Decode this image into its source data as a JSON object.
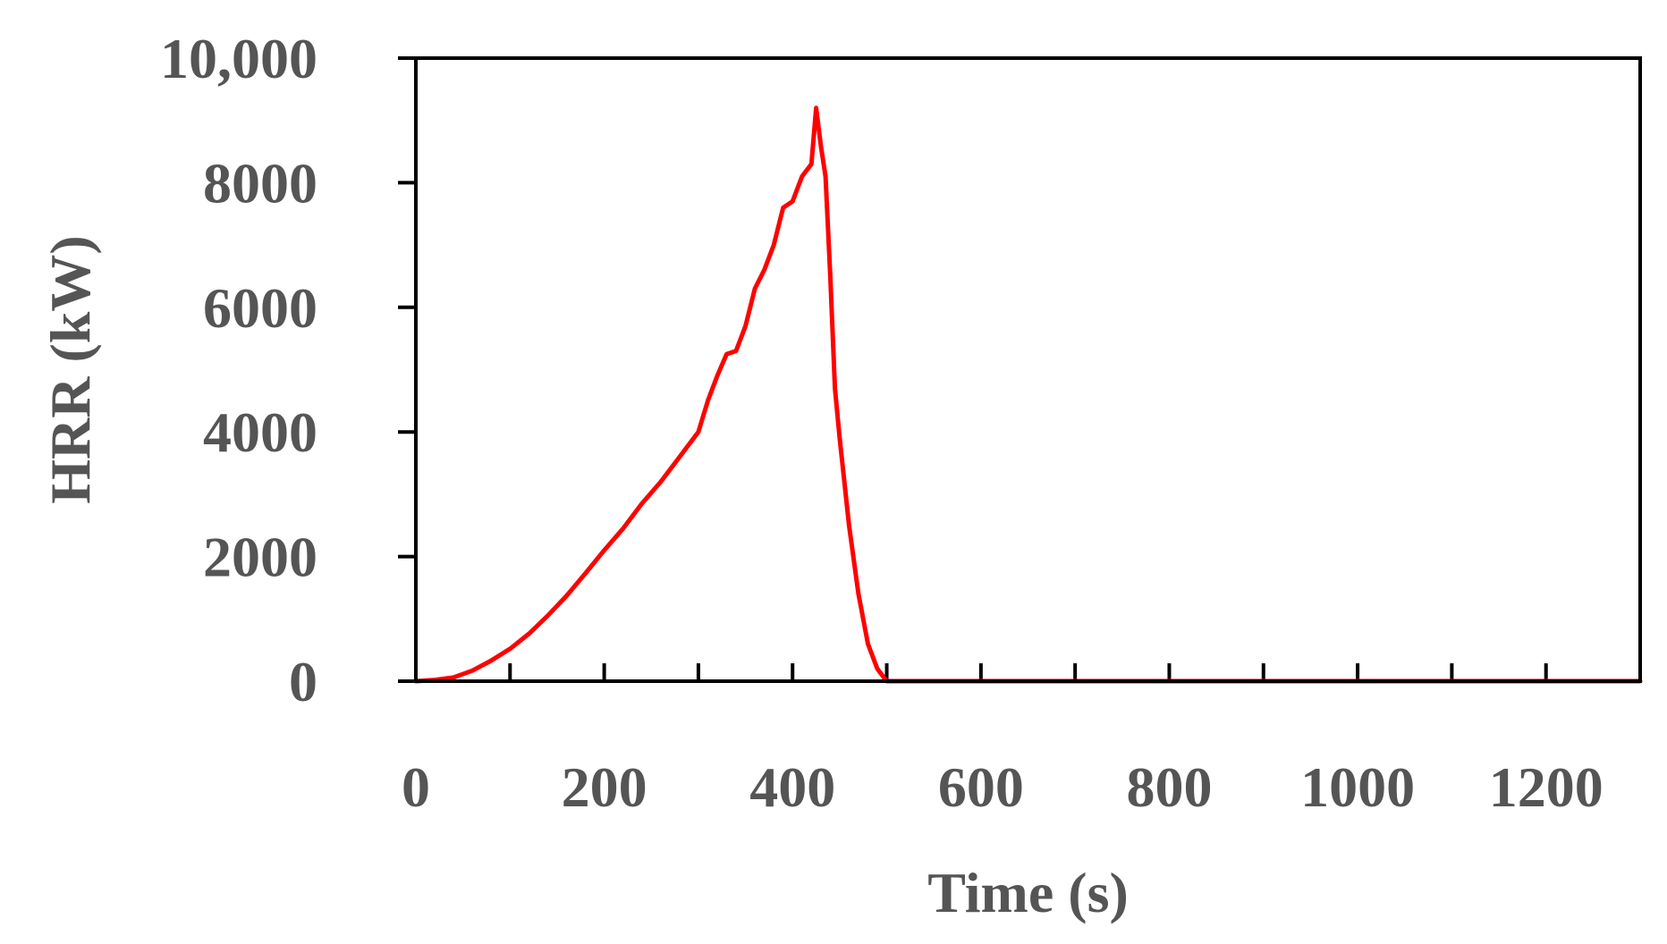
{
  "chart_data": {
    "type": "line",
    "title": "",
    "xlabel": "Time (s)",
    "ylabel": "HRR (kW)",
    "xlim": [
      0,
      1300
    ],
    "ylim": [
      0,
      10000
    ],
    "x_ticks": [
      0,
      200,
      400,
      600,
      800,
      1000,
      1200
    ],
    "x_tick_labels": [
      "0",
      "200",
      "400",
      "600",
      "800",
      "1000",
      "1200"
    ],
    "x_minor_ticks": [
      100,
      300,
      500,
      700,
      900,
      1100
    ],
    "y_ticks": [
      0,
      2000,
      4000,
      6000,
      8000,
      10000
    ],
    "y_tick_labels": [
      "0",
      "2000",
      "4000",
      "6000",
      "8000",
      "10,000"
    ],
    "grid": false,
    "legend": "none",
    "series": [
      {
        "color": "#ff0000",
        "x": [
          0,
          20,
          40,
          60,
          80,
          100,
          120,
          140,
          160,
          180,
          200,
          220,
          240,
          260,
          280,
          300,
          310,
          320,
          330,
          340,
          350,
          360,
          370,
          380,
          390,
          400,
          410,
          420,
          425,
          430,
          435,
          440,
          445,
          450,
          460,
          470,
          480,
          490,
          500,
          510,
          520,
          600,
          700,
          800,
          900,
          1000,
          1100,
          1200,
          1300
        ],
        "y": [
          0,
          20,
          60,
          170,
          330,
          520,
          760,
          1050,
          1370,
          1730,
          2100,
          2450,
          2850,
          3200,
          3600,
          4000,
          4500,
          4900,
          5250,
          5300,
          5700,
          6300,
          6600,
          7000,
          7600,
          7700,
          8100,
          8300,
          9200,
          8600,
          8100,
          6500,
          4700,
          3900,
          2500,
          1400,
          600,
          200,
          0,
          0,
          0,
          0,
          0,
          0,
          0,
          0,
          0,
          0,
          0
        ]
      }
    ]
  }
}
